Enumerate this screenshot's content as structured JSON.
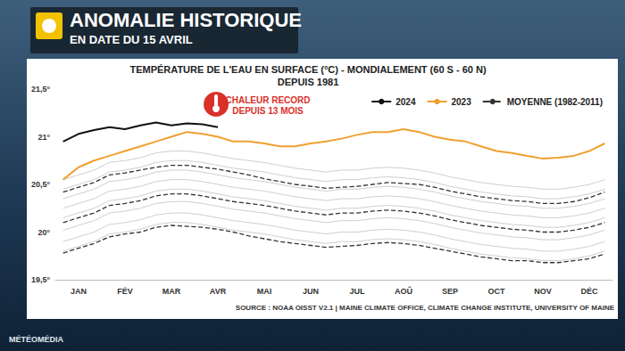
{
  "header": {
    "title": "ANOMALIE HISTORIQUE",
    "subtitle": "EN DATE DU 15 AVRIL"
  },
  "footer": "MÉTÉOMÉDIA",
  "chart_data": {
    "type": "line",
    "title": "TEMPÉRATURE DE L'EAU EN SURFACE (°C) - MONDIALEMENT (60 S - 60 N)",
    "subtitle": "DEPUIS 1981",
    "annotations": [
      "CHALEUR RECORD\nDEPUIS 13 MOIS"
    ],
    "source": "SOURCE : NOAA OISST V2.1 | MAINE CLIMATE OFFICE, CLIMATE CHANGE INSTITUTE, UNIVERSITY OF MAINE",
    "categories": [
      null,
      "JAN",
      null,
      null,
      "FÉV",
      null,
      null,
      "MAR",
      null,
      null,
      "AVR",
      null,
      null,
      "MAI",
      null,
      null,
      "JUN",
      null,
      null,
      "JUL",
      null,
      null,
      "AOÛ",
      null,
      null,
      "SEP",
      null,
      null,
      "OCT",
      null,
      null,
      "NOV",
      null,
      null,
      "DÉC",
      null
    ],
    "ylim": [
      19.5,
      21.5
    ],
    "yticks": [
      {
        "value": 19.5,
        "label": "19,5°"
      },
      {
        "value": 20,
        "label": "20°"
      },
      {
        "value": 20.5,
        "label": "20,5°"
      },
      {
        "value": 21,
        "label": "21°"
      },
      {
        "value": 21.5,
        "label": "21,5°"
      }
    ],
    "grid": false,
    "legend": "upper right",
    "series": [
      {
        "color": "#c8c8c8",
        "line_style": "solid",
        "marker": "none",
        "values": [
          19.8,
          19.85,
          19.9,
          19.98,
          20.0,
          20.03,
          20.08,
          20.1,
          20.1,
          20.08,
          20.05,
          20.02,
          20.0,
          19.98,
          19.95,
          19.92,
          19.9,
          19.88,
          19.9,
          19.9,
          19.92,
          19.93,
          19.92,
          19.9,
          19.87,
          19.83,
          19.8,
          19.77,
          19.75,
          19.73,
          19.72,
          19.7,
          19.7,
          19.72,
          19.75,
          19.8
        ]
      },
      {
        "color": "#c8c8c8",
        "line_style": "solid",
        "marker": "none",
        "values": [
          19.9,
          19.95,
          20.0,
          20.08,
          20.1,
          20.13,
          20.18,
          20.2,
          20.2,
          20.18,
          20.15,
          20.12,
          20.1,
          20.08,
          20.05,
          20.02,
          20.0,
          19.98,
          20.0,
          20.0,
          20.02,
          20.03,
          20.02,
          20.0,
          19.97,
          19.93,
          19.9,
          19.87,
          19.85,
          19.83,
          19.82,
          19.8,
          19.8,
          19.82,
          19.85,
          19.9
        ]
      },
      {
        "color": "#c8c8c8",
        "line_style": "solid",
        "marker": "none",
        "values": [
          20.02,
          20.07,
          20.12,
          20.2,
          20.22,
          20.25,
          20.3,
          20.32,
          20.32,
          20.3,
          20.27,
          20.24,
          20.22,
          20.2,
          20.17,
          20.14,
          20.12,
          20.1,
          20.12,
          20.12,
          20.14,
          20.15,
          20.14,
          20.12,
          20.09,
          20.05,
          20.02,
          19.99,
          19.97,
          19.95,
          19.94,
          19.92,
          19.92,
          19.94,
          19.97,
          20.02
        ]
      },
      {
        "color": "#c8c8c8",
        "line_style": "solid",
        "marker": "none",
        "values": [
          20.15,
          20.2,
          20.25,
          20.33,
          20.35,
          20.38,
          20.43,
          20.45,
          20.45,
          20.43,
          20.4,
          20.37,
          20.35,
          20.33,
          20.3,
          20.27,
          20.25,
          20.23,
          20.25,
          20.25,
          20.27,
          20.28,
          20.27,
          20.25,
          20.22,
          20.18,
          20.15,
          20.12,
          20.1,
          20.08,
          20.07,
          20.05,
          20.05,
          20.07,
          20.1,
          20.15
        ]
      },
      {
        "color": "#c8c8c8",
        "line_style": "solid",
        "marker": "none",
        "values": [
          20.25,
          20.3,
          20.35,
          20.43,
          20.45,
          20.48,
          20.53,
          20.55,
          20.55,
          20.53,
          20.5,
          20.47,
          20.45,
          20.43,
          20.4,
          20.37,
          20.35,
          20.33,
          20.35,
          20.35,
          20.37,
          20.38,
          20.37,
          20.35,
          20.32,
          20.28,
          20.25,
          20.22,
          20.2,
          20.18,
          20.17,
          20.15,
          20.15,
          20.17,
          20.2,
          20.25
        ]
      },
      {
        "color": "#c8c8c8",
        "line_style": "solid",
        "marker": "none",
        "values": [
          20.35,
          20.4,
          20.45,
          20.53,
          20.55,
          20.58,
          20.63,
          20.65,
          20.65,
          20.63,
          20.6,
          20.57,
          20.55,
          20.53,
          20.5,
          20.47,
          20.45,
          20.43,
          20.45,
          20.45,
          20.47,
          20.48,
          20.47,
          20.45,
          20.42,
          20.38,
          20.35,
          20.32,
          20.3,
          20.28,
          20.27,
          20.25,
          20.25,
          20.27,
          20.3,
          20.35
        ]
      },
      {
        "color": "#c8c8c8",
        "line_style": "solid",
        "marker": "none",
        "values": [
          20.45,
          20.5,
          20.55,
          20.63,
          20.65,
          20.68,
          20.73,
          20.75,
          20.75,
          20.73,
          20.7,
          20.67,
          20.65,
          20.63,
          20.6,
          20.57,
          20.55,
          20.53,
          20.55,
          20.55,
          20.57,
          20.58,
          20.57,
          20.55,
          20.52,
          20.48,
          20.45,
          20.42,
          20.4,
          20.38,
          20.37,
          20.35,
          20.35,
          20.37,
          20.4,
          20.45
        ]
      },
      {
        "color": "#c8c8c8",
        "line_style": "solid",
        "marker": "none",
        "values": [
          20.55,
          20.6,
          20.65,
          20.73,
          20.75,
          20.78,
          20.83,
          20.85,
          20.85,
          20.83,
          20.8,
          20.77,
          20.75,
          20.73,
          20.7,
          20.67,
          20.65,
          20.63,
          20.65,
          20.65,
          20.67,
          20.68,
          20.67,
          20.65,
          20.62,
          20.58,
          20.55,
          20.52,
          20.5,
          20.48,
          20.47,
          20.45,
          20.45,
          20.47,
          20.5,
          20.55
        ]
      },
      {
        "color": "#333333",
        "line_style": "dashed",
        "marker": "none",
        "values": [
          20.42,
          20.47,
          20.52,
          20.6,
          20.62,
          20.65,
          20.68,
          20.7,
          20.7,
          20.68,
          20.66,
          20.63,
          20.6,
          20.56,
          20.53,
          20.5,
          20.48,
          20.46,
          20.47,
          20.48,
          20.5,
          20.52,
          20.51,
          20.5,
          20.47,
          20.43,
          20.4,
          20.37,
          20.35,
          20.33,
          20.32,
          20.3,
          20.3,
          20.32,
          20.36,
          20.42
        ]
      },
      {
        "color": "#333333",
        "line_style": "dashed",
        "marker": "none",
        "values": [
          19.78,
          19.83,
          19.88,
          19.95,
          19.98,
          20.0,
          20.05,
          20.07,
          20.06,
          20.05,
          20.03,
          20.0,
          19.96,
          19.93,
          19.9,
          19.88,
          19.86,
          19.84,
          19.85,
          19.86,
          19.88,
          19.89,
          19.88,
          19.86,
          19.83,
          19.8,
          19.77,
          19.74,
          19.72,
          19.7,
          19.7,
          19.68,
          19.68,
          19.7,
          19.72,
          19.77
        ]
      },
      {
        "name": "MOYENNE (1982-2011)",
        "color": "#333333",
        "line_style": "dashed",
        "marker": "none",
        "values": [
          20.1,
          20.15,
          20.2,
          20.28,
          20.3,
          20.33,
          20.38,
          20.4,
          20.4,
          20.38,
          20.35,
          20.32,
          20.3,
          20.28,
          20.25,
          20.22,
          20.2,
          20.18,
          20.2,
          20.2,
          20.22,
          20.23,
          20.22,
          20.2,
          20.17,
          20.13,
          20.1,
          20.07,
          20.05,
          20.03,
          20.02,
          20.0,
          20.0,
          20.02,
          20.05,
          20.1
        ]
      },
      {
        "name": "2023",
        "color": "#f0a030",
        "line_style": "solid",
        "marker": "none",
        "values": [
          20.55,
          20.68,
          20.75,
          20.8,
          20.85,
          20.9,
          20.95,
          21.0,
          21.05,
          21.03,
          21.0,
          20.95,
          20.95,
          20.93,
          20.9,
          20.9,
          20.93,
          20.95,
          20.98,
          21.02,
          21.05,
          21.05,
          21.08,
          21.05,
          21.0,
          20.97,
          20.95,
          20.9,
          20.85,
          20.83,
          20.8,
          20.77,
          20.78,
          20.8,
          20.85,
          20.93
        ]
      },
      {
        "name": "2024",
        "color": "#111111",
        "line_style": "solid",
        "marker": "none",
        "values": [
          20.95,
          21.03,
          21.07,
          21.1,
          21.08,
          21.12,
          21.15,
          21.12,
          21.14,
          21.13,
          21.1,
          null,
          null,
          null,
          null,
          null,
          null,
          null,
          null,
          null,
          null,
          null,
          null,
          null,
          null,
          null,
          null,
          null,
          null,
          null,
          null,
          null,
          null,
          null,
          null,
          null
        ]
      }
    ]
  }
}
